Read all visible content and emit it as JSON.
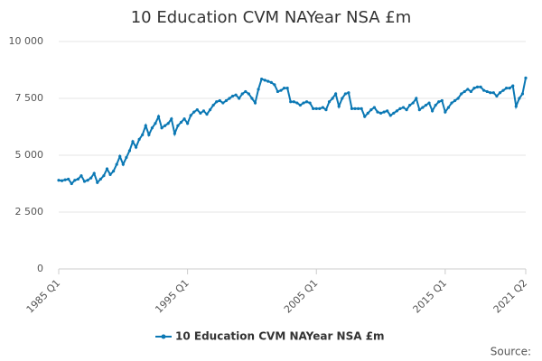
{
  "chart_data": {
    "type": "line",
    "title": "10 Education CVM NAYear NSA £m",
    "source": "Source:",
    "categories": [
      "1985 Q1",
      null,
      null,
      null,
      null,
      null,
      null,
      null,
      null,
      null,
      null,
      null,
      null,
      null,
      null,
      null,
      null,
      null,
      null,
      null,
      null,
      null,
      null,
      null,
      null,
      null,
      null,
      null,
      null,
      null,
      null,
      null,
      null,
      null,
      null,
      null,
      null,
      null,
      null,
      null,
      "1995 Q1",
      null,
      null,
      null,
      null,
      null,
      null,
      null,
      null,
      null,
      null,
      null,
      null,
      null,
      null,
      null,
      null,
      null,
      null,
      null,
      null,
      null,
      null,
      null,
      null,
      null,
      null,
      null,
      null,
      null,
      null,
      null,
      null,
      null,
      null,
      null,
      null,
      null,
      null,
      null,
      "2005 Q1",
      null,
      null,
      null,
      null,
      null,
      null,
      null,
      null,
      null,
      null,
      null,
      null,
      null,
      null,
      null,
      null,
      null,
      null,
      null,
      null,
      null,
      null,
      null,
      null,
      null,
      null,
      null,
      null,
      null,
      null,
      null,
      null,
      null,
      null,
      null,
      null,
      null,
      null,
      null,
      "2015 Q1",
      null,
      null,
      null,
      null,
      null,
      null,
      null,
      null,
      null,
      null,
      null,
      null,
      null,
      null,
      null,
      null,
      null,
      null,
      null,
      null,
      null,
      null,
      null,
      null,
      "2021 Q2"
    ],
    "series": [
      {
        "name": "10 Education CVM NAYear NSA £m",
        "color": "#0b78b4",
        "values": [
          3900,
          3880,
          3920,
          3950,
          3750,
          3900,
          3950,
          4100,
          3850,
          3900,
          4000,
          4200,
          3800,
          3950,
          4100,
          4400,
          4150,
          4300,
          4600,
          4950,
          4600,
          4900,
          5200,
          5600,
          5350,
          5700,
          5900,
          6300,
          5900,
          6200,
          6400,
          6700,
          6200,
          6300,
          6400,
          6600,
          5950,
          6300,
          6450,
          6600,
          6400,
          6750,
          6900,
          7000,
          6850,
          6950,
          6800,
          7000,
          7200,
          7350,
          7400,
          7300,
          7400,
          7500,
          7600,
          7650,
          7500,
          7700,
          7800,
          7700,
          7500,
          7300,
          7900,
          8350,
          8300,
          8250,
          8200,
          8100,
          7800,
          7850,
          7950,
          7950,
          7350,
          7350,
          7300,
          7200,
          7300,
          7350,
          7300,
          7050,
          7050,
          7050,
          7100,
          7000,
          7350,
          7500,
          7700,
          7150,
          7500,
          7700,
          7750,
          7050,
          7050,
          7050,
          7050,
          6700,
          6850,
          7000,
          7100,
          6900,
          6850,
          6900,
          6950,
          6750,
          6850,
          6950,
          7050,
          7100,
          7000,
          7200,
          7300,
          7500,
          7000,
          7100,
          7200,
          7300,
          6950,
          7200,
          7350,
          7400,
          6900,
          7100,
          7300,
          7400,
          7500,
          7700,
          7800,
          7900,
          7800,
          7950,
          8000,
          8000,
          7850,
          7800,
          7750,
          7750,
          7600,
          7750,
          7850,
          7950,
          7950,
          8050,
          7150,
          7500,
          7700,
          8400
        ]
      }
    ],
    "ylim": [
      0,
      10000
    ],
    "yticks": [
      0,
      {
        "value": 2500,
        "label": "2 500"
      },
      {
        "value": 5000,
        "label": "5 000"
      },
      {
        "value": 7500,
        "label": "7 500"
      },
      {
        "value": 10000,
        "label": "10 000"
      }
    ],
    "grid": true
  }
}
